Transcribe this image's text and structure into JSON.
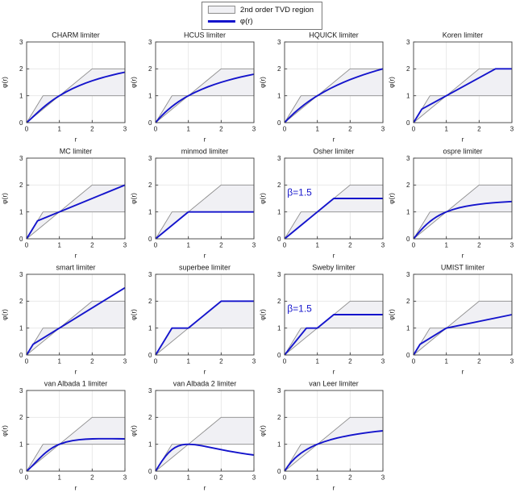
{
  "figure": {
    "background": "#ffffff",
    "legend": {
      "items": [
        {
          "type": "patch",
          "label": "2nd order TVD region",
          "fill": "#f0f0f4",
          "stroke": "#8c8c8c"
        },
        {
          "type": "line",
          "label": "φ(r)",
          "color": "#1414cc"
        }
      ]
    }
  },
  "chart_data": {
    "type": "line",
    "xlabel": "r",
    "ylabel": "φ(r)",
    "xlim": [
      0,
      3
    ],
    "ylim": [
      0,
      3
    ],
    "xticks": [
      0,
      1,
      2,
      3
    ],
    "yticks": [
      0,
      1,
      2,
      3
    ],
    "grid": true,
    "grid_color": "#e6e6e6",
    "axis_color": "#404040",
    "text_color": "#1a1a1a",
    "line_color": "#1414cc",
    "tvd_region": {
      "label": "2nd order TVD region",
      "fill": "#f0f0f4",
      "stroke": "#8c8c8c",
      "polygon": [
        [
          0,
          0
        ],
        [
          0.5,
          1
        ],
        [
          1,
          1
        ],
        [
          2,
          2
        ],
        [
          3,
          2
        ],
        [
          3,
          1
        ],
        [
          1,
          1
        ]
      ]
    },
    "plots": [
      {
        "id": "charm",
        "title": "CHARM limiter",
        "points": [
          [
            0,
            0
          ],
          [
            0.1,
            0.107
          ],
          [
            0.2,
            0.222
          ],
          [
            0.3,
            0.337
          ],
          [
            0.4,
            0.449
          ],
          [
            0.5,
            0.556
          ],
          [
            0.6,
            0.656
          ],
          [
            0.7,
            0.751
          ],
          [
            0.8,
            0.84
          ],
          [
            0.9,
            0.922
          ],
          [
            1,
            1
          ],
          [
            1.2,
            1.14
          ],
          [
            1.4,
            1.264
          ],
          [
            1.6,
            1.373
          ],
          [
            1.8,
            1.469
          ],
          [
            2,
            1.556
          ],
          [
            2.2,
            1.633
          ],
          [
            2.4,
            1.702
          ],
          [
            2.6,
            1.765
          ],
          [
            2.8,
            1.823
          ],
          [
            3,
            1.875
          ]
        ]
      },
      {
        "id": "hcus",
        "title": "HCUS limiter",
        "points": [
          [
            0,
            0
          ],
          [
            0.1,
            0.143
          ],
          [
            0.2,
            0.273
          ],
          [
            0.3,
            0.391
          ],
          [
            0.4,
            0.5
          ],
          [
            0.5,
            0.6
          ],
          [
            0.6,
            0.692
          ],
          [
            0.7,
            0.778
          ],
          [
            0.8,
            0.857
          ],
          [
            0.9,
            0.931
          ],
          [
            1,
            1
          ],
          [
            1.2,
            1.125
          ],
          [
            1.4,
            1.235
          ],
          [
            1.6,
            1.333
          ],
          [
            1.8,
            1.421
          ],
          [
            2,
            1.5
          ],
          [
            2.2,
            1.571
          ],
          [
            2.4,
            1.636
          ],
          [
            2.6,
            1.696
          ],
          [
            2.8,
            1.75
          ],
          [
            3,
            1.8
          ]
        ]
      },
      {
        "id": "hquick",
        "title": "HQUICK limiter",
        "points": [
          [
            0,
            0
          ],
          [
            0.1,
            0.129
          ],
          [
            0.2,
            0.25
          ],
          [
            0.3,
            0.364
          ],
          [
            0.4,
            0.471
          ],
          [
            0.5,
            0.571
          ],
          [
            0.6,
            0.667
          ],
          [
            0.7,
            0.757
          ],
          [
            0.8,
            0.842
          ],
          [
            0.9,
            0.923
          ],
          [
            1,
            1
          ],
          [
            1.2,
            1.143
          ],
          [
            1.4,
            1.273
          ],
          [
            1.6,
            1.391
          ],
          [
            1.8,
            1.5
          ],
          [
            2,
            1.6
          ],
          [
            2.2,
            1.692
          ],
          [
            2.4,
            1.778
          ],
          [
            2.6,
            1.857
          ],
          [
            2.8,
            1.931
          ],
          [
            3,
            2
          ]
        ]
      },
      {
        "id": "koren",
        "title": "Koren limiter",
        "points": [
          [
            0,
            0
          ],
          [
            0.25,
            0.5
          ],
          [
            2.5,
            2
          ],
          [
            3,
            2
          ]
        ]
      },
      {
        "id": "mc",
        "title": "MC limiter",
        "points": [
          [
            0,
            0
          ],
          [
            0.333,
            0.667
          ],
          [
            3,
            2
          ]
        ]
      },
      {
        "id": "minmod",
        "title": "minmod limiter",
        "points": [
          [
            0,
            0
          ],
          [
            1,
            1
          ],
          [
            3,
            1
          ]
        ]
      },
      {
        "id": "osher",
        "title": "Osher limiter",
        "annotation": {
          "text": "β=1.5",
          "x": 0.08,
          "y": 1.72
        },
        "points": [
          [
            0,
            0
          ],
          [
            1.5,
            1.5
          ],
          [
            3,
            1.5
          ]
        ]
      },
      {
        "id": "ospre",
        "title": "ospre limiter",
        "points": [
          [
            0,
            0
          ],
          [
            0.1,
            0.149
          ],
          [
            0.2,
            0.29
          ],
          [
            0.3,
            0.421
          ],
          [
            0.4,
            0.538
          ],
          [
            0.5,
            0.643
          ],
          [
            0.6,
            0.735
          ],
          [
            0.7,
            0.815
          ],
          [
            0.8,
            0.885
          ],
          [
            0.9,
            0.946
          ],
          [
            1,
            1
          ],
          [
            1.2,
            1.088
          ],
          [
            1.4,
            1.156
          ],
          [
            1.6,
            1.209
          ],
          [
            1.8,
            1.252
          ],
          [
            2,
            1.286
          ],
          [
            2.2,
            1.313
          ],
          [
            2.4,
            1.336
          ],
          [
            2.6,
            1.355
          ],
          [
            2.8,
            1.371
          ],
          [
            3,
            1.385
          ]
        ]
      },
      {
        "id": "smart",
        "title": "smart limiter",
        "points": [
          [
            0,
            0
          ],
          [
            0.2,
            0.4
          ],
          [
            3,
            2.5
          ]
        ]
      },
      {
        "id": "superbee",
        "title": "superbee limiter",
        "points": [
          [
            0,
            0
          ],
          [
            0.5,
            1
          ],
          [
            1,
            1
          ],
          [
            2,
            2
          ],
          [
            3,
            2
          ]
        ]
      },
      {
        "id": "sweby",
        "title": "Sweby limiter",
        "annotation": {
          "text": "β=1.5",
          "x": 0.08,
          "y": 1.72
        },
        "points": [
          [
            0,
            0
          ],
          [
            0.667,
            1
          ],
          [
            1,
            1
          ],
          [
            1.5,
            1.5
          ],
          [
            3,
            1.5
          ]
        ]
      },
      {
        "id": "umist",
        "title": "UMIST limiter",
        "points": [
          [
            0,
            0
          ],
          [
            0.2,
            0.4
          ],
          [
            1,
            1
          ],
          [
            3,
            1.5
          ]
        ]
      },
      {
        "id": "van-albada-1",
        "title": "van Albada 1 limiter",
        "points": [
          [
            0,
            0
          ],
          [
            0.1,
            0.109
          ],
          [
            0.2,
            0.231
          ],
          [
            0.3,
            0.358
          ],
          [
            0.4,
            0.483
          ],
          [
            0.5,
            0.6
          ],
          [
            0.6,
            0.706
          ],
          [
            0.7,
            0.799
          ],
          [
            0.8,
            0.878
          ],
          [
            0.9,
            0.945
          ],
          [
            1,
            1
          ],
          [
            1.2,
            1.082
          ],
          [
            1.4,
            1.135
          ],
          [
            1.6,
            1.169
          ],
          [
            1.8,
            1.189
          ],
          [
            2,
            1.2
          ],
          [
            2.2,
            1.205
          ],
          [
            2.4,
            1.207
          ],
          [
            2.6,
            1.206
          ],
          [
            2.8,
            1.204
          ],
          [
            3,
            1.2
          ]
        ]
      },
      {
        "id": "van-albada-2",
        "title": "van Albada 2 limiter",
        "points": [
          [
            0,
            0
          ],
          [
            0.1,
            0.198
          ],
          [
            0.2,
            0.385
          ],
          [
            0.3,
            0.55
          ],
          [
            0.4,
            0.69
          ],
          [
            0.5,
            0.8
          ],
          [
            0.6,
            0.882
          ],
          [
            0.7,
            0.94
          ],
          [
            0.8,
            0.976
          ],
          [
            0.9,
            0.994
          ],
          [
            1,
            1
          ],
          [
            1.2,
            0.984
          ],
          [
            1.4,
            0.946
          ],
          [
            1.6,
            0.899
          ],
          [
            1.8,
            0.849
          ],
          [
            2,
            0.8
          ],
          [
            2.2,
            0.753
          ],
          [
            2.4,
            0.71
          ],
          [
            2.6,
            0.67
          ],
          [
            2.8,
            0.633
          ],
          [
            3,
            0.6
          ]
        ]
      },
      {
        "id": "van-leer",
        "title": "van Leer limiter",
        "points": [
          [
            0,
            0
          ],
          [
            0.1,
            0.182
          ],
          [
            0.2,
            0.333
          ],
          [
            0.3,
            0.462
          ],
          [
            0.4,
            0.571
          ],
          [
            0.5,
            0.667
          ],
          [
            0.6,
            0.75
          ],
          [
            0.7,
            0.824
          ],
          [
            0.8,
            0.889
          ],
          [
            0.9,
            0.947
          ],
          [
            1,
            1
          ],
          [
            1.2,
            1.091
          ],
          [
            1.4,
            1.167
          ],
          [
            1.6,
            1.231
          ],
          [
            1.8,
            1.286
          ],
          [
            2,
            1.333
          ],
          [
            2.2,
            1.375
          ],
          [
            2.4,
            1.412
          ],
          [
            2.6,
            1.444
          ],
          [
            2.8,
            1.474
          ],
          [
            3,
            1.5
          ]
        ]
      }
    ]
  }
}
